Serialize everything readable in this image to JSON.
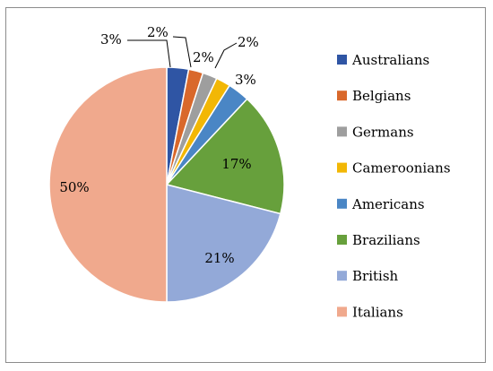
{
  "chart_data": {
    "type": "pie",
    "title": "",
    "legend_position": "right",
    "slices": [
      {
        "name": "Australians",
        "value": 3,
        "label": "3%",
        "color": "#2F55A4"
      },
      {
        "name": "Belgians",
        "value": 2,
        "label": "2%",
        "color": "#D9682B"
      },
      {
        "name": "Germans",
        "value": 2,
        "label": "2%",
        "color": "#9E9E9E"
      },
      {
        "name": "Cameroonians",
        "value": 2,
        "label": "2%",
        "color": "#F2B705"
      },
      {
        "name": "Americans",
        "value": 3,
        "label": "3%",
        "color": "#4A86C5"
      },
      {
        "name": "Brazilians",
        "value": 17,
        "label": "17%",
        "color": "#67A03C"
      },
      {
        "name": "British",
        "value": 21,
        "label": "21%",
        "color": "#93A9D8"
      },
      {
        "name": "Italians",
        "value": 50,
        "label": "50%",
        "color": "#F0A98D"
      }
    ]
  }
}
